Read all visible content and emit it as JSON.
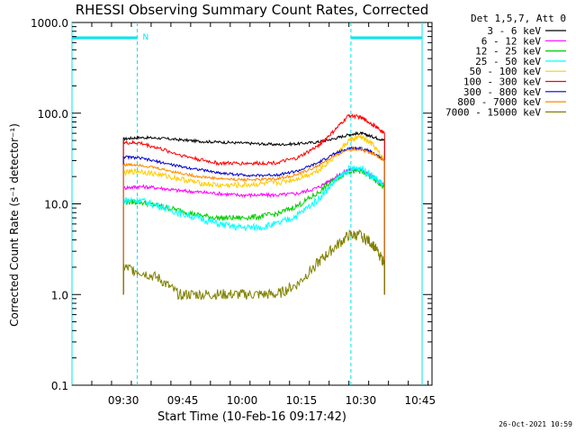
{
  "chart_data": {
    "type": "line",
    "title": "RHESSI Observing Summary Count Rates, Corrected",
    "xlabel": "Start Time (10-Feb-16 09:17:42)",
    "ylabel": "Corrected Count Rate (s⁻¹ detector⁻¹)",
    "yscale": "log",
    "ylim": [
      0.1,
      1000.0
    ],
    "xlim_minutes_after_0917": [
      0,
      91
    ],
    "y_ticks": [
      "0.1",
      "1.0",
      "10.0",
      "100.0",
      "1000.0"
    ],
    "x_ticks": [
      {
        "label": "09:30",
        "minute": 13
      },
      {
        "label": "09:45",
        "minute": 28
      },
      {
        "label": "10:00",
        "minute": 43
      },
      {
        "label": "10:15",
        "minute": 58
      },
      {
        "label": "10:30",
        "minute": 73
      },
      {
        "label": "10:45",
        "minute": 88
      }
    ],
    "legend_header": "Det 1,5,7, Att 0",
    "legend_position": "right",
    "night_marker": "N",
    "night_intervals_minutes": [
      [
        0,
        16.5
      ],
      [
        70.5,
        88.5
      ]
    ],
    "footer": "26-Oct-2021 10:59",
    "x_minutes": [
      13,
      17,
      22,
      27,
      32,
      37,
      42,
      47,
      52,
      57,
      62,
      66,
      70,
      73,
      76,
      79
    ],
    "series": [
      {
        "name": "3 - 6 keV",
        "color": "#000000",
        "values": [
          52,
          54,
          53,
          51,
          49,
          48,
          47,
          46,
          45,
          46,
          48,
          52,
          58,
          60,
          55,
          50
        ]
      },
      {
        "name": "6 - 12 keV",
        "color": "#ff00ff",
        "values": [
          15,
          15.5,
          15,
          14,
          13.5,
          13,
          12.5,
          12.5,
          12.5,
          13,
          15,
          19,
          24,
          24,
          20,
          16
        ]
      },
      {
        "name": "12 - 25 keV",
        "color": "#00cc00",
        "values": [
          10.5,
          10.5,
          9.5,
          8.5,
          7.5,
          7,
          7,
          7.2,
          7.8,
          9.5,
          13,
          18,
          23,
          23,
          19,
          15
        ]
      },
      {
        "name": "25 - 50 keV",
        "color": "#00ffff",
        "values": [
          11,
          11,
          9.5,
          8,
          7,
          6,
          5.5,
          5.5,
          6,
          7.5,
          11,
          17,
          24,
          25,
          20,
          16
        ]
      },
      {
        "name": "50 - 100 keV",
        "color": "#ffcc00",
        "values": [
          22,
          23,
          21,
          19,
          17,
          16,
          16,
          16.5,
          17,
          19,
          23,
          32,
          50,
          55,
          45,
          30
        ]
      },
      {
        "name": "100 - 300 keV",
        "color": "#ff0000",
        "values": [
          47,
          47,
          41,
          35,
          31,
          28,
          28,
          28,
          28.5,
          32,
          43,
          62,
          95,
          90,
          75,
          60
        ]
      },
      {
        "name": "300 - 800 keV",
        "color": "#0000cc",
        "values": [
          33,
          32,
          29,
          26,
          24,
          22,
          21,
          20.5,
          21,
          23,
          28,
          35,
          41,
          41,
          37,
          30
        ]
      },
      {
        "name": "800 - 7000 keV",
        "color": "#ff8800",
        "values": [
          27,
          27,
          24.5,
          22,
          20,
          19,
          18.5,
          18.5,
          19,
          21,
          26,
          33,
          40,
          40,
          36,
          30
        ]
      },
      {
        "name": "7000 - 15000 keV",
        "color": "#808000",
        "values": [
          2,
          1.8,
          1.5,
          1,
          1,
          1,
          1,
          1,
          1,
          1.3,
          2.2,
          3.2,
          4.5,
          4.5,
          3.6,
          2.2
        ]
      }
    ]
  }
}
